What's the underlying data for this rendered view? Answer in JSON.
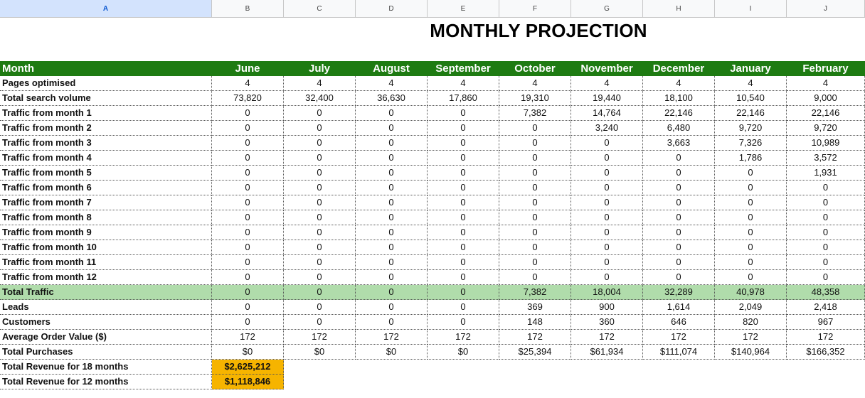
{
  "columns": [
    "A",
    "B",
    "C",
    "D",
    "E",
    "F",
    "G",
    "H",
    "I",
    "J"
  ],
  "title": "MONTHLY PROJECTION",
  "header": {
    "label": "Month",
    "months": [
      "June",
      "July",
      "August",
      "September",
      "October",
      "November",
      "December",
      "January",
      "February"
    ]
  },
  "rows": [
    {
      "label": "Pages optimised",
      "values": [
        "4",
        "4",
        "4",
        "4",
        "4",
        "4",
        "4",
        "4",
        "4"
      ]
    },
    {
      "label": "Total search volume",
      "values": [
        "73,820",
        "32,400",
        "36,630",
        "17,860",
        "19,310",
        "19,440",
        "18,100",
        "10,540",
        "9,000"
      ]
    },
    {
      "label": "Traffic from month 1",
      "values": [
        "0",
        "0",
        "0",
        "0",
        "7,382",
        "14,764",
        "22,146",
        "22,146",
        "22,146"
      ]
    },
    {
      "label": "Traffic from month 2",
      "values": [
        "0",
        "0",
        "0",
        "0",
        "0",
        "3,240",
        "6,480",
        "9,720",
        "9,720"
      ]
    },
    {
      "label": "Traffic from month 3",
      "values": [
        "0",
        "0",
        "0",
        "0",
        "0",
        "0",
        "3,663",
        "7,326",
        "10,989"
      ]
    },
    {
      "label": "Traffic from month 4",
      "values": [
        "0",
        "0",
        "0",
        "0",
        "0",
        "0",
        "0",
        "1,786",
        "3,572"
      ]
    },
    {
      "label": "Traffic from month 5",
      "values": [
        "0",
        "0",
        "0",
        "0",
        "0",
        "0",
        "0",
        "0",
        "1,931"
      ]
    },
    {
      "label": "Traffic from month 6",
      "values": [
        "0",
        "0",
        "0",
        "0",
        "0",
        "0",
        "0",
        "0",
        "0"
      ]
    },
    {
      "label": "Traffic from month 7",
      "values": [
        "0",
        "0",
        "0",
        "0",
        "0",
        "0",
        "0",
        "0",
        "0"
      ]
    },
    {
      "label": "Traffic from month 8",
      "values": [
        "0",
        "0",
        "0",
        "0",
        "0",
        "0",
        "0",
        "0",
        "0"
      ]
    },
    {
      "label": "Traffic from month 9",
      "values": [
        "0",
        "0",
        "0",
        "0",
        "0",
        "0",
        "0",
        "0",
        "0"
      ]
    },
    {
      "label": "Traffic from month 10",
      "values": [
        "0",
        "0",
        "0",
        "0",
        "0",
        "0",
        "0",
        "0",
        "0"
      ]
    },
    {
      "label": "Traffic from month 11",
      "values": [
        "0",
        "0",
        "0",
        "0",
        "0",
        "0",
        "0",
        "0",
        "0"
      ]
    },
    {
      "label": "Traffic from month 12",
      "values": [
        "0",
        "0",
        "0",
        "0",
        "0",
        "0",
        "0",
        "0",
        "0"
      ]
    },
    {
      "label": "Total Traffic",
      "values": [
        "0",
        "0",
        "0",
        "0",
        "7,382",
        "18,004",
        "32,289",
        "40,978",
        "48,358"
      ],
      "highlight": true
    },
    {
      "label": "Leads",
      "values": [
        "0",
        "0",
        "0",
        "0",
        "369",
        "900",
        "1,614",
        "2,049",
        "2,418"
      ]
    },
    {
      "label": "Customers",
      "values": [
        "0",
        "0",
        "0",
        "0",
        "148",
        "360",
        "646",
        "820",
        "967"
      ]
    },
    {
      "label": "Average Order Value ($)",
      "values": [
        "172",
        "172",
        "172",
        "172",
        "172",
        "172",
        "172",
        "172",
        "172"
      ]
    },
    {
      "label": "Total Purchases",
      "values": [
        "$0",
        "$0",
        "$0",
        "$0",
        "$25,394",
        "$61,934",
        "$111,074",
        "$140,964",
        "$166,352"
      ]
    }
  ],
  "revenue": [
    {
      "label": "Total Revenue for 18 months",
      "value": "$2,625,212"
    },
    {
      "label": "Total Revenue for 12 months",
      "value": "$1,118,846"
    }
  ],
  "colors": {
    "header": "#1e7b12",
    "total": "#b0dcab",
    "revenue": "#f6b400"
  }
}
